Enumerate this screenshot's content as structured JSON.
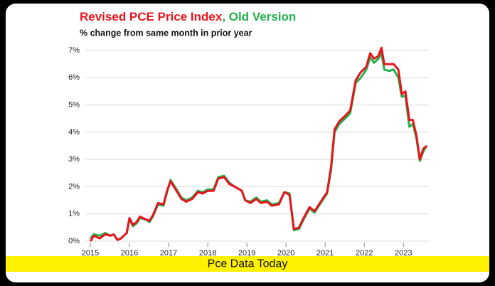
{
  "chart_data": {
    "type": "line",
    "subtitle": "% change from same month in prior year",
    "title_separator": ", ",
    "banner": "Pce Data Today",
    "x": [
      2015.0,
      2015.09,
      2015.24,
      2015.38,
      2015.51,
      2015.6,
      2015.69,
      2015.78,
      2015.93,
      2016.0,
      2016.09,
      2016.18,
      2016.27,
      2016.42,
      2016.51,
      2016.6,
      2016.73,
      2016.87,
      2016.96,
      2017.05,
      2017.18,
      2017.33,
      2017.45,
      2017.6,
      2017.75,
      2017.87,
      2018.0,
      2018.15,
      2018.27,
      2018.42,
      2018.55,
      2018.69,
      2018.87,
      2018.96,
      2019.09,
      2019.24,
      2019.36,
      2019.51,
      2019.64,
      2019.82,
      2019.96,
      2020.09,
      2020.2,
      2020.33,
      2020.45,
      2020.6,
      2020.73,
      2020.91,
      2021.05,
      2021.15,
      2021.24,
      2021.36,
      2021.51,
      2021.64,
      2021.78,
      2021.91,
      2022.05,
      2022.15,
      2022.25,
      2022.36,
      2022.44,
      2022.51,
      2022.64,
      2022.75,
      2022.87,
      2022.96,
      2023.05,
      2023.15,
      2023.24,
      2023.33,
      2023.42,
      2023.51,
      2023.6
    ],
    "series": [
      {
        "name": "Old Version",
        "color": "#22b14c",
        "values": [
          0.1,
          0.25,
          0.2,
          0.3,
          0.2,
          0.25,
          0.05,
          0.1,
          0.3,
          0.8,
          0.55,
          0.65,
          0.85,
          0.8,
          0.7,
          0.9,
          1.35,
          1.3,
          1.8,
          2.25,
          1.95,
          1.6,
          1.5,
          1.6,
          1.85,
          1.8,
          1.9,
          1.9,
          2.35,
          2.4,
          2.15,
          2.0,
          1.85,
          1.5,
          1.45,
          1.6,
          1.45,
          1.5,
          1.35,
          1.4,
          1.8,
          1.75,
          0.4,
          0.45,
          0.8,
          1.2,
          1.05,
          1.45,
          1.75,
          2.6,
          4.0,
          4.3,
          4.5,
          4.7,
          5.8,
          6.0,
          6.3,
          6.75,
          6.55,
          6.7,
          6.9,
          6.3,
          6.25,
          6.3,
          6.0,
          5.3,
          5.35,
          4.2,
          4.3,
          3.8,
          2.95,
          3.3,
          3.5
        ]
      },
      {
        "name": "Revised PCE Price Index",
        "color": "#e8141c",
        "values": [
          0.0,
          0.2,
          0.1,
          0.25,
          0.2,
          0.25,
          0.05,
          0.1,
          0.3,
          0.85,
          0.6,
          0.7,
          0.9,
          0.8,
          0.75,
          0.95,
          1.4,
          1.35,
          1.85,
          2.2,
          1.9,
          1.55,
          1.45,
          1.55,
          1.8,
          1.75,
          1.85,
          1.85,
          2.3,
          2.35,
          2.1,
          2.0,
          1.85,
          1.5,
          1.4,
          1.55,
          1.4,
          1.45,
          1.3,
          1.35,
          1.8,
          1.7,
          0.45,
          0.5,
          0.85,
          1.25,
          1.1,
          1.5,
          1.8,
          2.7,
          4.1,
          4.4,
          4.6,
          4.8,
          5.9,
          6.2,
          6.4,
          6.9,
          6.7,
          6.8,
          7.1,
          6.5,
          6.5,
          6.5,
          6.3,
          5.4,
          5.5,
          4.45,
          4.45,
          3.9,
          3.0,
          3.4,
          3.5
        ]
      }
    ],
    "xlim": [
      2015,
      2023.65
    ],
    "xticks": [
      2015,
      2016,
      2017,
      2018,
      2019,
      2020,
      2021,
      2022,
      2023
    ],
    "ylim": [
      0,
      7
    ],
    "yticks": [
      {
        "value": 0,
        "label": "0%"
      },
      {
        "value": 1,
        "label": "1%"
      },
      {
        "value": 2,
        "label": "2%"
      },
      {
        "value": 3,
        "label": "3%"
      },
      {
        "value": 4,
        "label": "4%"
      },
      {
        "value": 5,
        "label": "5%"
      },
      {
        "value": 6,
        "label": "6%"
      },
      {
        "value": 7,
        "label": "7%"
      }
    ],
    "grid": true
  }
}
